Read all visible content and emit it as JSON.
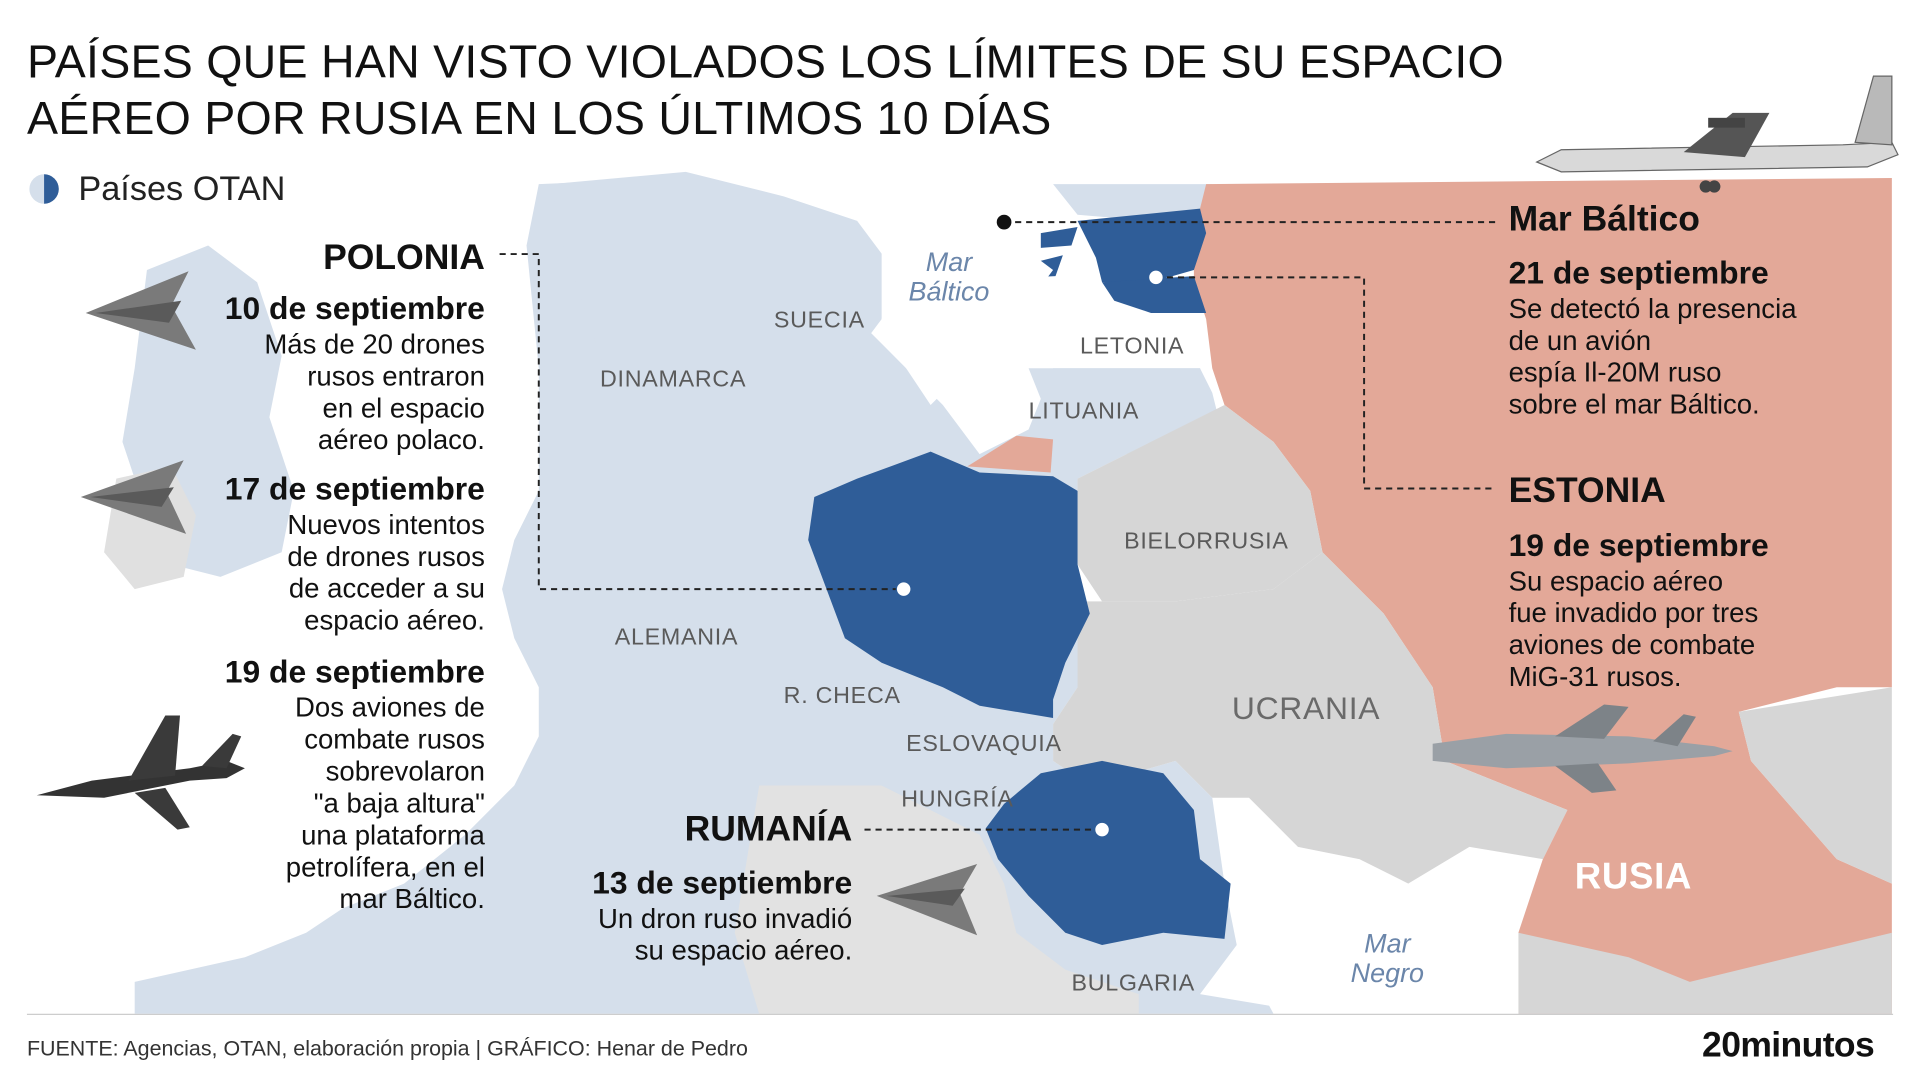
{
  "title": {
    "line1": "PAÍSES QUE HAN VISTO VIOLADOS LOS LÍMITES DE SU ESPACIO",
    "line2": "AÉREO POR RUSIA EN LOS ÚLTIMOS 10 DÍAS"
  },
  "legend": {
    "label": "Países OTAN"
  },
  "countries": {
    "suecia": "SUECIA",
    "dinamarca": "DINAMARCA",
    "letonia": "LETONIA",
    "lituania": "LITUANIA",
    "bielorrusia": "BIELORRUSIA",
    "alemania": "ALEMANIA",
    "rcheca": "R. CHECA",
    "eslovaquia": "ESLOVAQUIA",
    "hungria": "HUNGRÍA",
    "ucrania": "UCRANIA",
    "bulgaria": "BULGARIA",
    "rusia": "RUSIA"
  },
  "seas": {
    "baltico": {
      "line1": "Mar",
      "line2": "Báltico"
    },
    "negro": {
      "line1": "Mar",
      "line2": "Negro"
    }
  },
  "events": {
    "polonia": {
      "country": "POLONIA",
      "items": [
        {
          "date": "10 de septiembre",
          "lines": [
            "Más de 20 drones",
            "rusos entraron",
            "en el espacio",
            "aéreo polaco."
          ]
        },
        {
          "date": "17 de septiembre",
          "lines": [
            "Nuevos intentos",
            "de drones rusos",
            "de acceder a su",
            "espacio aéreo."
          ]
        },
        {
          "date": "19 de septiembre",
          "lines": [
            "Dos aviones de",
            "combate rusos",
            "sobrevolaron",
            "\"a baja altura\"",
            "una plataforma",
            "petrolífera, en el",
            "mar Báltico."
          ]
        }
      ]
    },
    "rumania": {
      "country": "RUMANÍA",
      "date": "13 de septiembre",
      "lines": [
        "Un dron ruso invadió",
        "su espacio aéreo."
      ]
    },
    "baltico": {
      "country": "Mar Báltico",
      "date": "21 de septiembre",
      "lines": [
        "Se detectó la presencia",
        "de un avión",
        "espía Il-20M ruso",
        "sobre el mar Báltico."
      ]
    },
    "estonia": {
      "country": "ESTONIA",
      "date": "19 de septiembre",
      "lines": [
        "Su espacio aéreo",
        "fue invadido por tres",
        "aviones de combate",
        "MiG-31 rusos."
      ]
    }
  },
  "footer": {
    "source": "FUENTE: Agencias, OTAN, elaboración propia  |  GRÁFICO: Henar de Pedro",
    "brand": "20minutos"
  },
  "colors": {
    "nato": "#2f5d98",
    "nato_light": "#d5dfeb",
    "russia": "#e3a898",
    "nonnato": "#d6d6d6",
    "sea": "#ffffff",
    "sea_label": "#6b86aa"
  },
  "icons": {
    "drone": "drone-icon",
    "fighter": "fighter-jet-icon",
    "spy_plane": "spy-plane-icon"
  }
}
